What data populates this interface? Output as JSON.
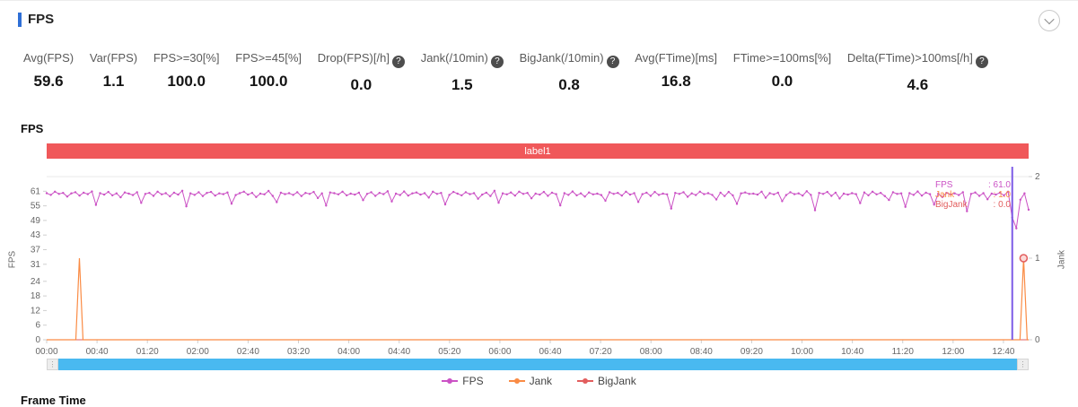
{
  "header": {
    "title": "FPS"
  },
  "icons": {
    "help_glyph": "?"
  },
  "sections": {
    "fps_chart_title": "FPS",
    "frame_time_title": "Frame Time"
  },
  "stats": [
    {
      "label": "Avg(FPS)",
      "value": "59.6",
      "help": false
    },
    {
      "label": "Var(FPS)",
      "value": "1.1",
      "help": false
    },
    {
      "label": "FPS>=30[%]",
      "value": "100.0",
      "help": false
    },
    {
      "label": "FPS>=45[%]",
      "value": "100.0",
      "help": false
    },
    {
      "label": "Drop(FPS)[/h]",
      "value": "0.0",
      "help": true
    },
    {
      "label": "Jank(/10min)",
      "value": "1.5",
      "help": true
    },
    {
      "label": "BigJank(/10min)",
      "value": "0.8",
      "help": true
    },
    {
      "label": "Avg(FTime)[ms]",
      "value": "16.8",
      "help": false
    },
    {
      "label": "FTime>=100ms[%]",
      "value": "0.0",
      "help": false
    },
    {
      "label": "Delta(FTime)>100ms[/h]",
      "value": "4.6",
      "help": true
    }
  ],
  "legend": [
    {
      "name": "FPS",
      "color": "#cb52c5"
    },
    {
      "name": "Jank",
      "color": "#fa8b44"
    },
    {
      "name": "BigJank",
      "color": "#e25d5d"
    }
  ],
  "chart_data": {
    "type": "line",
    "band_label": "label1",
    "x_axis": {
      "tick_labels": [
        "00:00",
        "00:40",
        "01:20",
        "02:00",
        "02:40",
        "03:20",
        "04:00",
        "04:40",
        "05:20",
        "06:00",
        "06:40",
        "07:20",
        "08:00",
        "08:40",
        "09:20",
        "10:00",
        "10:40",
        "11:20",
        "12:00",
        "12:40"
      ],
      "tick_interval_seconds": 40,
      "max_seconds": 780
    },
    "y_axis_left": {
      "label": "FPS",
      "ticks": [
        0,
        6,
        12,
        18,
        24,
        31,
        37,
        43,
        49,
        55,
        61
      ],
      "axis_max": 67
    },
    "y_axis_right": {
      "label": "Jank",
      "ticks": [
        0,
        1,
        2
      ],
      "axis_max": 2
    },
    "series": [
      {
        "name": "FPS",
        "color": "#cb52c5",
        "values": [
          60.2,
          59.5,
          60.8,
          59.9,
          60.3,
          58.8,
          60.1,
          60.6,
          59.2,
          60.4,
          59.8,
          60.9,
          55.4,
          60.2,
          59.6,
          60.7,
          59.3,
          60.1,
          58.5,
          60.5,
          60.0,
          59.4,
          60.6,
          56.2,
          59.9,
          60.3,
          59.1,
          60.8,
          59.7,
          60.2,
          58.9,
          60.4,
          59.6,
          61.2,
          54.8,
          60.1,
          59.5,
          60.6,
          59.0,
          60.3,
          60.7,
          59.2,
          60.1,
          59.8,
          60.5,
          55.9,
          59.4,
          60.2,
          60.8,
          59.6,
          60.3,
          58.6,
          60.0,
          59.7,
          61.1,
          59.1,
          56.5,
          60.4,
          59.8,
          60.2,
          59.5,
          60.6,
          59.0,
          60.3,
          59.9,
          60.7,
          58.2,
          60.1,
          55.1,
          60.5,
          60.2,
          59.7,
          60.8,
          59.3,
          60.0,
          59.6,
          60.4,
          57.3,
          59.9,
          60.6,
          59.1,
          60.3,
          59.8,
          61.0,
          56.8,
          60.0,
          59.4,
          60.9,
          59.2,
          60.1,
          60.5,
          59.6,
          60.2,
          58.4,
          60.8,
          59.9,
          60.3,
          55.6,
          59.5,
          60.7,
          60.0,
          59.3,
          60.6,
          59.8,
          60.2,
          57.9,
          59.6,
          60.4,
          59.0,
          61.2,
          56.3,
          60.1,
          59.7,
          60.5,
          59.2,
          60.8,
          59.9,
          60.3,
          58.1,
          60.0,
          59.6,
          60.7,
          59.1,
          60.4,
          59.8,
          55.2,
          60.2,
          59.5,
          60.9,
          59.3,
          60.1,
          58.8,
          60.5,
          59.7,
          60.0,
          59.4,
          57.1,
          60.6,
          59.9,
          60.3,
          59.2,
          60.8,
          59.6,
          60.2,
          56.6,
          59.8,
          60.4,
          59.1,
          60.7,
          59.5,
          60.0,
          59.7,
          53.9,
          60.3,
          59.9,
          60.6,
          58.7,
          60.1,
          59.4,
          60.8,
          59.8,
          60.2,
          59.5,
          57.6,
          60.4,
          59.0,
          60.7,
          59.3,
          55.8,
          60.1,
          60.5,
          59.9,
          60.0,
          59.6,
          60.8,
          58.3,
          60.2,
          59.7,
          60.4,
          56.9,
          59.4,
          60.6,
          59.8,
          60.1,
          59.2,
          61.0,
          59.5,
          53.2,
          60.3,
          59.9,
          60.7,
          59.1,
          60.4,
          58.0,
          60.0,
          59.6,
          60.2,
          59.8,
          56.1,
          60.5,
          59.3,
          60.8,
          59.7,
          60.3,
          59.0,
          57.4,
          60.6,
          59.9,
          60.1,
          54.6,
          60.2,
          59.5,
          60.9,
          59.2,
          60.4,
          59.8,
          55.5,
          60.0,
          58.6,
          60.3,
          59.7,
          60.1,
          59.4,
          60.6,
          52.8,
          59.9,
          60.5,
          59.1,
          60.2,
          57.7,
          60.0,
          59.6,
          60.4,
          59.3,
          60.8,
          50.2,
          45.8,
          57.5,
          60.1,
          53.4
        ]
      },
      {
        "name": "Jank",
        "color": "#fa8b44",
        "baseline": 0,
        "spikes": [
          {
            "time_seconds": 26,
            "value": 1
          },
          {
            "time_seconds": 776,
            "value": 1
          }
        ]
      },
      {
        "name": "BigJank",
        "color": "#e25d5d",
        "baseline": 0,
        "spikes": []
      }
    ],
    "cursor": {
      "time_seconds": 767,
      "color": "#7d5ce6"
    },
    "hover_marker": {
      "series": "Jank",
      "time_seconds": 776,
      "value": 1
    },
    "tooltip": [
      {
        "name": "FPS",
        "value": "61.0",
        "color": "#cb52c5"
      },
      {
        "name": "Jank",
        "value": "1.0",
        "color": "#fa8b44"
      },
      {
        "name": "BigJank",
        "value": "0.0",
        "color": "#e25d5d"
      }
    ]
  }
}
